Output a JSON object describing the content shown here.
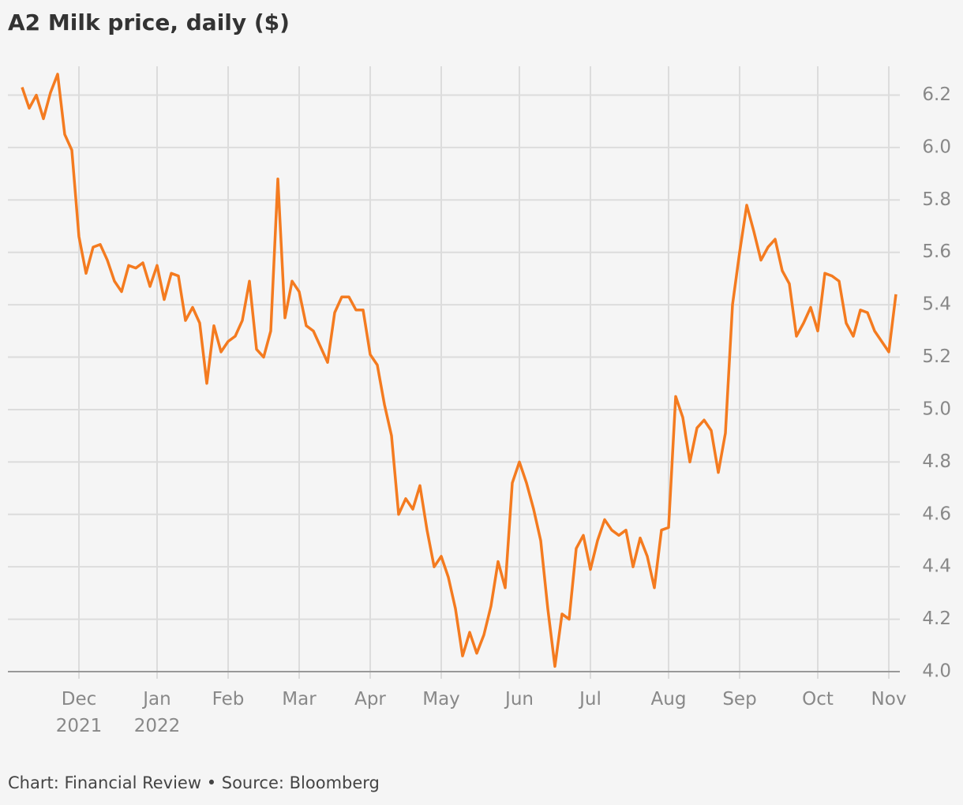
{
  "chart_data": {
    "type": "line",
    "title": "A2 Milk price, daily ($)",
    "source": "Chart: Financial Review • Source: Bloomberg",
    "color": "#f47b20",
    "grid": true,
    "ylim": [
      4.0,
      6.31
    ],
    "yticks": [
      {
        "value": 4,
        "label": "4.0"
      },
      4.2,
      4.4,
      4.6,
      4.8,
      {
        "value": 5,
        "label": "5.0"
      },
      5.2,
      5.4,
      5.6,
      5.8,
      {
        "value": 6,
        "label": "6.0"
      },
      6.2
    ],
    "categories": [
      null,
      null,
      null,
      null,
      null,
      null,
      null,
      null,
      "Dec 2021",
      null,
      null,
      null,
      null,
      null,
      null,
      null,
      null,
      null,
      null,
      "Jan 2022",
      null,
      null,
      null,
      null,
      null,
      null,
      null,
      null,
      null,
      "Feb",
      null,
      null,
      null,
      null,
      null,
      null,
      null,
      null,
      null,
      "Mar",
      null,
      null,
      null,
      null,
      null,
      null,
      null,
      null,
      null,
      "Apr",
      null,
      null,
      null,
      null,
      null,
      null,
      null,
      null,
      null,
      "May",
      null,
      null,
      null,
      null,
      null,
      null,
      null,
      null,
      null,
      null,
      "Jun",
      null,
      null,
      null,
      null,
      null,
      null,
      null,
      null,
      null,
      "Jul",
      null,
      null,
      null,
      null,
      null,
      null,
      null,
      null,
      null,
      null,
      "Aug",
      null,
      null,
      null,
      null,
      null,
      null,
      null,
      null,
      null,
      "Sep",
      null,
      null,
      null,
      null,
      null,
      null,
      null,
      null,
      null,
      null,
      "Oct",
      null,
      null,
      null,
      null,
      null,
      null,
      null,
      null,
      null,
      "Nov",
      null
    ],
    "values": [
      6.23,
      6.15,
      6.2,
      6.11,
      6.21,
      6.28,
      6.05,
      5.99,
      5.66,
      5.52,
      5.62,
      5.63,
      5.57,
      5.49,
      5.45,
      5.55,
      5.54,
      5.56,
      5.47,
      5.55,
      5.42,
      5.52,
      5.51,
      5.34,
      5.39,
      5.33,
      5.1,
      5.32,
      5.22,
      5.26,
      5.28,
      5.34,
      5.49,
      5.23,
      5.2,
      5.3,
      5.88,
      5.35,
      5.49,
      5.45,
      5.32,
      5.3,
      5.24,
      5.18,
      5.37,
      5.43,
      5.43,
      5.38,
      5.38,
      5.21,
      5.17,
      5.02,
      4.9,
      4.6,
      4.66,
      4.62,
      4.71,
      4.54,
      4.4,
      4.44,
      4.36,
      4.24,
      4.06,
      4.15,
      4.07,
      4.14,
      4.25,
      4.42,
      4.32,
      4.72,
      4.8,
      4.72,
      4.62,
      4.5,
      4.24,
      4.02,
      4.22,
      4.2,
      4.47,
      4.52,
      4.39,
      4.5,
      4.58,
      4.54,
      4.52,
      4.54,
      4.4,
      4.51,
      4.44,
      4.32,
      4.54,
      4.55,
      5.05,
      4.97,
      4.8,
      4.93,
      4.96,
      4.92,
      4.76,
      4.91,
      5.4,
      5.6,
      5.78,
      5.68,
      5.57,
      5.62,
      5.65,
      5.53,
      5.48,
      5.28,
      5.33,
      5.39,
      5.3,
      5.52,
      5.51,
      5.49,
      5.33,
      5.28,
      5.38,
      5.37,
      5.3,
      5.26,
      5.22,
      5.44
    ]
  }
}
